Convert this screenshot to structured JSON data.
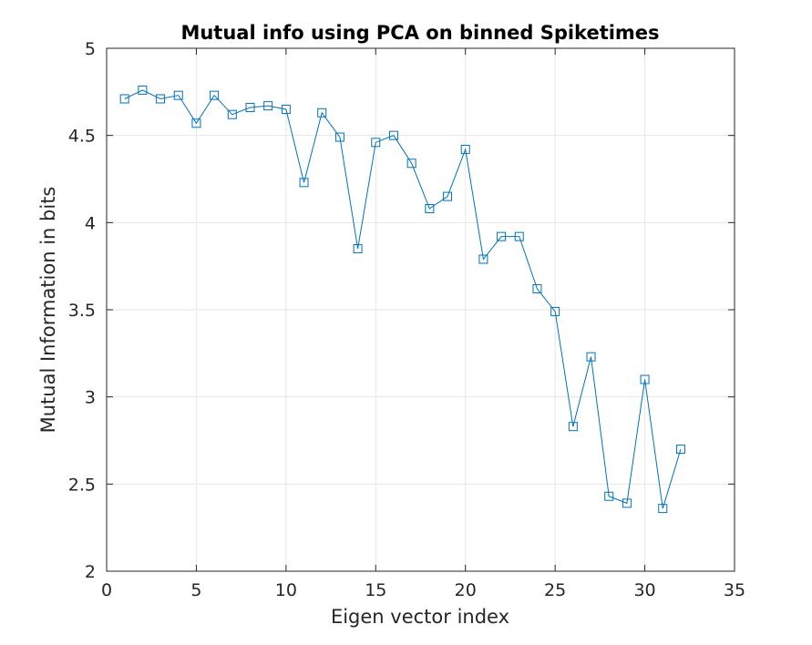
{
  "chart_data": {
    "type": "line",
    "title": "Mutual info using PCA on binned Spiketimes",
    "xlabel": "Eigen vector index",
    "ylabel": "Mutual Information in bits",
    "xlim": [
      0,
      35
    ],
    "ylim": [
      2,
      5
    ],
    "xticks": [
      0,
      5,
      10,
      15,
      20,
      25,
      30,
      35
    ],
    "yticks": [
      2,
      2.5,
      3,
      3.5,
      4,
      4.5,
      5
    ],
    "xtick_labels": [
      "0",
      "5",
      "10",
      "15",
      "20",
      "25",
      "30",
      "35"
    ],
    "ytick_labels": [
      "2",
      "2.5",
      "3",
      "3.5",
      "4",
      "4.5",
      "5"
    ],
    "grid": true,
    "marker": "square",
    "color": "#0072bd",
    "series": [
      {
        "x": [
          1,
          2,
          3,
          4,
          5,
          6,
          7,
          8,
          9,
          10,
          11,
          12,
          13,
          14,
          15,
          16,
          17,
          18,
          19,
          20,
          21,
          22,
          23,
          24,
          25,
          26,
          27,
          28,
          29,
          30,
          31,
          32
        ],
        "y": [
          4.71,
          4.76,
          4.71,
          4.73,
          4.57,
          4.73,
          4.62,
          4.66,
          4.67,
          4.65,
          4.23,
          4.63,
          4.49,
          3.85,
          4.46,
          4.5,
          4.34,
          4.08,
          4.15,
          4.42,
          3.79,
          3.92,
          3.92,
          3.62,
          3.49,
          2.83,
          3.23,
          2.43,
          2.39,
          3.1,
          2.36,
          2.7
        ]
      }
    ]
  }
}
